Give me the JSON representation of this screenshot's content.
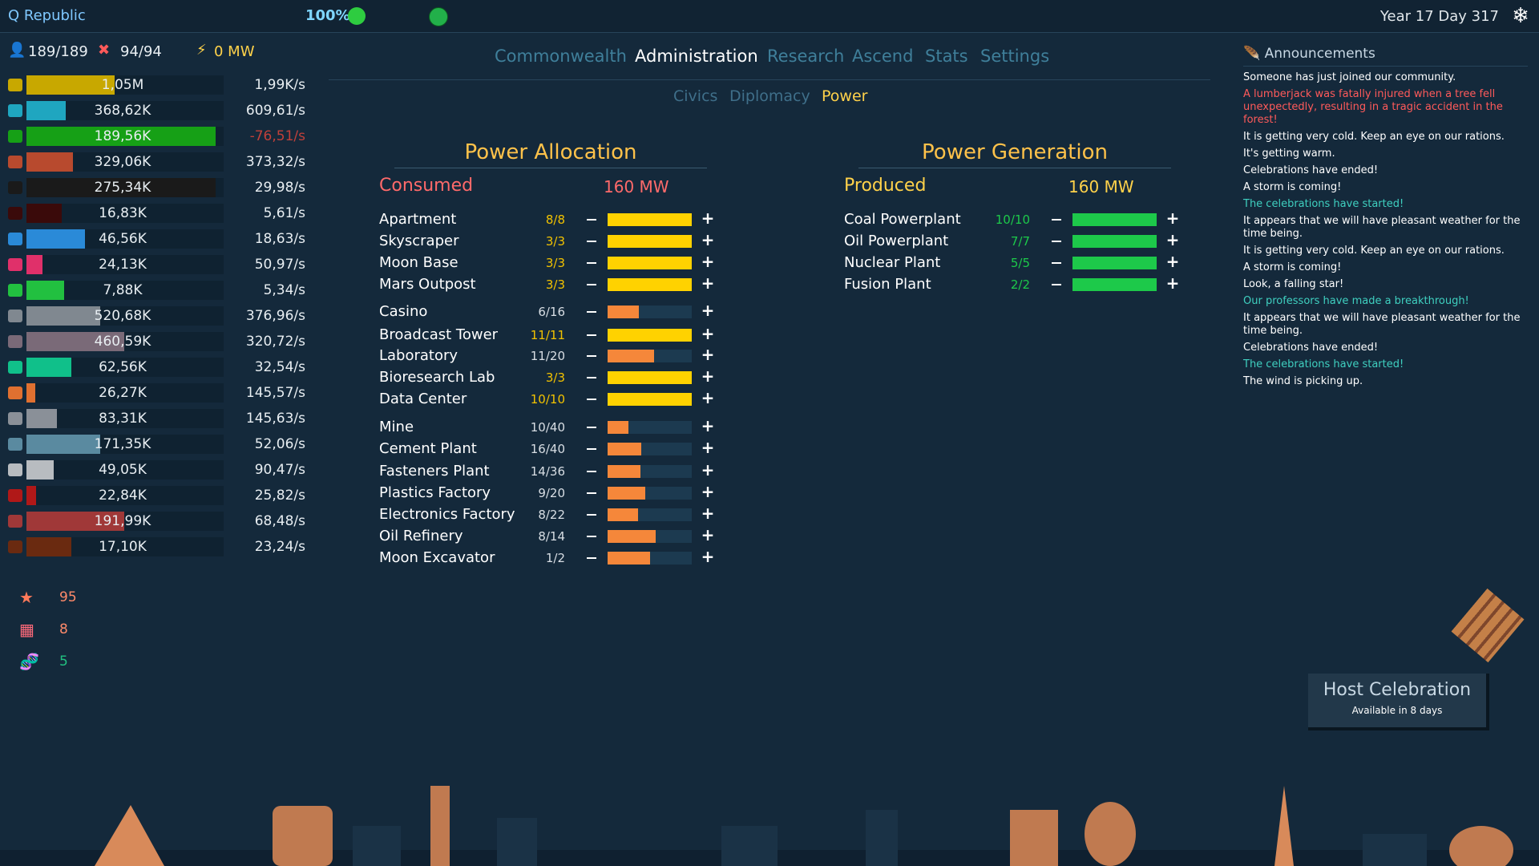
{
  "header": {
    "title": "Q Republic",
    "happiness": "100%",
    "date": "Year 17 Day 317"
  },
  "stats": {
    "population": "189/189",
    "jobs": "94/94",
    "power": "0 MW"
  },
  "resources": [
    {
      "amount": "1,05M",
      "rate": "1,99K/s"
    },
    {
      "amount": "368,62K",
      "rate": "609,61/s"
    },
    {
      "amount": "189,56K",
      "rate": "-76,51/s"
    },
    {
      "amount": "329,06K",
      "rate": "373,32/s"
    },
    {
      "amount": "275,34K",
      "rate": "29,98/s"
    },
    {
      "amount": "16,83K",
      "rate": "5,61/s"
    },
    {
      "amount": "46,56K",
      "rate": "18,63/s"
    },
    {
      "amount": "24,13K",
      "rate": "50,97/s"
    },
    {
      "amount": "7,88K",
      "rate": "5,34/s"
    },
    {
      "amount": "520,68K",
      "rate": "376,96/s"
    },
    {
      "amount": "460,59K",
      "rate": "320,72/s"
    },
    {
      "amount": "62,56K",
      "rate": "32,54/s"
    },
    {
      "amount": "26,27K",
      "rate": "145,57/s"
    },
    {
      "amount": "83,31K",
      "rate": "145,63/s"
    },
    {
      "amount": "171,35K",
      "rate": "52,06/s"
    },
    {
      "amount": "49,05K",
      "rate": "90,47/s"
    },
    {
      "amount": "22,84K",
      "rate": "25,82/s"
    },
    {
      "amount": "191,99K",
      "rate": "68,48/s"
    },
    {
      "amount": "17,10K",
      "rate": "23,24/s"
    }
  ],
  "counters": [
    "95",
    "8",
    "5"
  ],
  "tabs": [
    "Commonwealth",
    "Administration",
    "Research",
    "Ascend",
    "Stats",
    "Settings"
  ],
  "subtabs": [
    "Civics",
    "Diplomacy",
    "Power"
  ],
  "allocation": {
    "title": "Power Allocation",
    "label": "Consumed",
    "total": "160 MW",
    "rows": [
      {
        "name": "Apartment",
        "ratio": "8/8"
      },
      {
        "name": "Skyscraper",
        "ratio": "3/3"
      },
      {
        "name": "Moon Base",
        "ratio": "3/3"
      },
      {
        "name": "Mars Outpost",
        "ratio": "3/3"
      },
      {
        "name": "Casino",
        "ratio": "6/16"
      },
      {
        "name": "Broadcast Tower",
        "ratio": "11/11"
      },
      {
        "name": "Laboratory",
        "ratio": "11/20"
      },
      {
        "name": "Bioresearch Lab",
        "ratio": "3/3"
      },
      {
        "name": "Data Center",
        "ratio": "10/10"
      },
      {
        "name": "Mine",
        "ratio": "10/40"
      },
      {
        "name": "Cement Plant",
        "ratio": "16/40"
      },
      {
        "name": "Fasteners Plant",
        "ratio": "14/36"
      },
      {
        "name": "Plastics Factory",
        "ratio": "9/20"
      },
      {
        "name": "Electronics Factory",
        "ratio": "8/22"
      },
      {
        "name": "Oil Refinery",
        "ratio": "8/14"
      },
      {
        "name": "Moon Excavator",
        "ratio": "1/2"
      }
    ]
  },
  "generation": {
    "title": "Power Generation",
    "label": "Produced",
    "total": "160 MW",
    "rows": [
      {
        "name": "Coal Powerplant",
        "ratio": "10/10"
      },
      {
        "name": "Oil Powerplant",
        "ratio": "7/7"
      },
      {
        "name": "Nuclear Plant",
        "ratio": "5/5"
      },
      {
        "name": "Fusion Plant",
        "ratio": "2/2"
      }
    ]
  },
  "announcements": {
    "title": "Announcements",
    "messages": [
      {
        "text": "Someone has just joined our community.",
        "tone": "normal"
      },
      {
        "text": "A lumberjack was fatally injured when a tree fell unexpectedly, resulting in a tragic accident in the forest!",
        "tone": "alert"
      },
      {
        "text": "It is getting very cold. Keep an eye on our rations.",
        "tone": "normal"
      },
      {
        "text": "It's getting warm.",
        "tone": "normal"
      },
      {
        "text": "Celebrations have ended!",
        "tone": "normal"
      },
      {
        "text": "A storm is coming!",
        "tone": "normal"
      },
      {
        "text": "The celebrations have started!",
        "tone": "good"
      },
      {
        "text": "It appears that we will have pleasant weather for the time being.",
        "tone": "normal"
      },
      {
        "text": "It is getting very cold. Keep an eye on our rations.",
        "tone": "normal"
      },
      {
        "text": "A storm is coming!",
        "tone": "normal"
      },
      {
        "text": "Look, a falling star!",
        "tone": "normal"
      },
      {
        "text": "Our professors have made a breakthrough!",
        "tone": "good"
      },
      {
        "text": "It appears that we will have pleasant weather for the time being.",
        "tone": "normal"
      },
      {
        "text": "Celebrations have ended!",
        "tone": "normal"
      },
      {
        "text": "The celebrations have started!",
        "tone": "good"
      },
      {
        "text": "The wind is picking up.",
        "tone": "normal"
      }
    ]
  },
  "celebration": {
    "button": "Host Celebration",
    "note": "Available in 8 days"
  }
}
